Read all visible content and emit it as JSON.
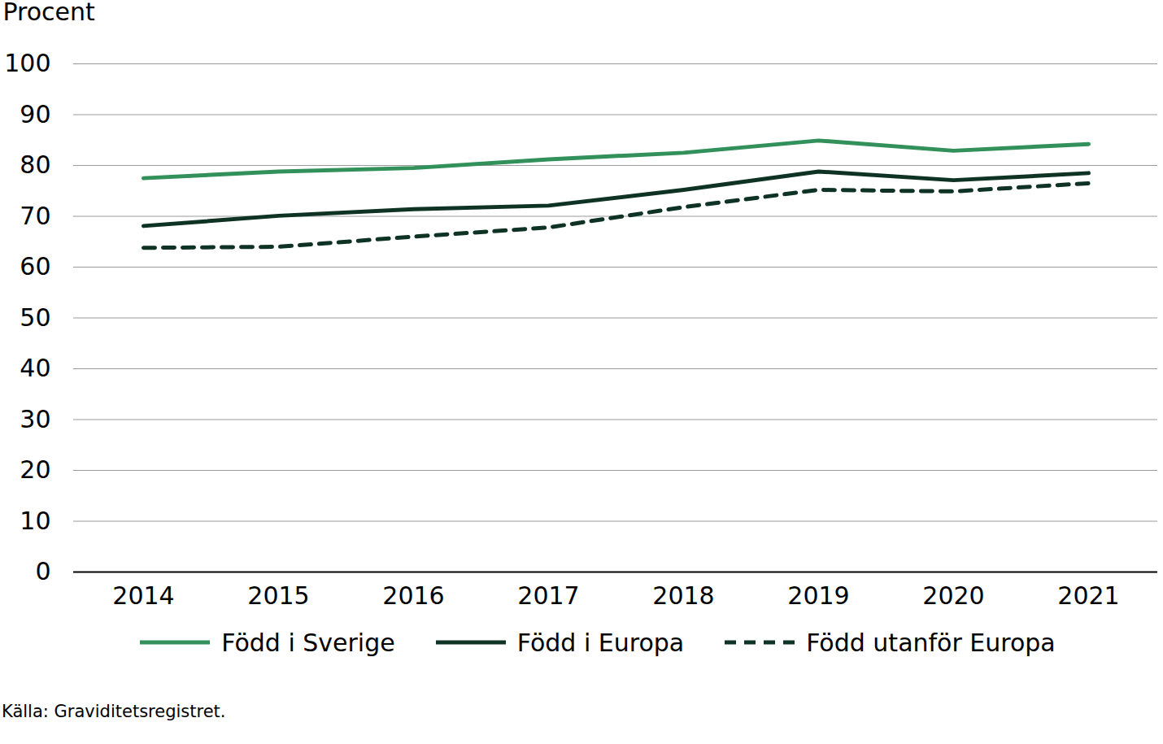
{
  "chart_data": {
    "type": "line",
    "y_label": "Procent",
    "caption": "Källa: Graviditetsregistret.",
    "categories": [
      "2014",
      "2015",
      "2016",
      "2017",
      "2018",
      "2019",
      "2020",
      "2021"
    ],
    "series": [
      {
        "name": "Född i Sverige",
        "color": "#32905a",
        "line_style": "solid",
        "values": [
          77.5,
          78.8,
          79.5,
          81.2,
          82.5,
          84.9,
          82.9,
          84.2
        ]
      },
      {
        "name": "Född i Europa",
        "color": "#0e3325",
        "line_style": "solid",
        "values": [
          68.1,
          70.1,
          71.4,
          72.1,
          75.2,
          78.8,
          77.1,
          78.5
        ]
      },
      {
        "name": "Född utanför Europa",
        "color": "#0e3325",
        "line_style": "dashed",
        "values": [
          63.8,
          64.0,
          66.0,
          67.8,
          71.8,
          75.2,
          74.9,
          76.5
        ]
      }
    ],
    "ylim": [
      0,
      100
    ],
    "yticks": [
      0,
      10,
      20,
      30,
      40,
      50,
      60,
      70,
      80,
      90,
      100
    ],
    "grid": true,
    "legend": "bottom"
  }
}
